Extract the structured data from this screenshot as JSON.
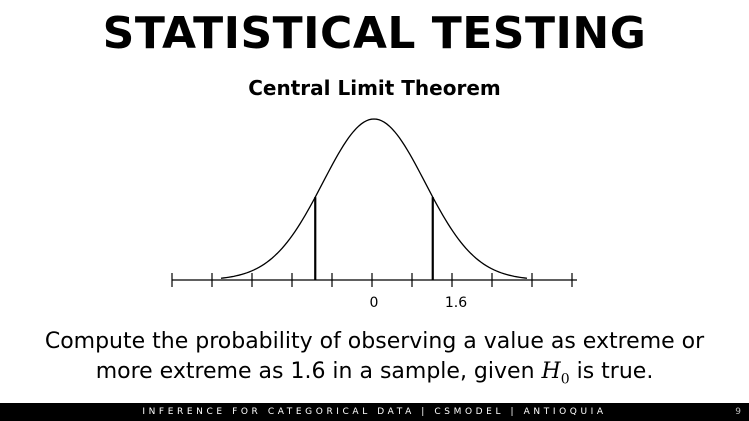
{
  "slide": {
    "title": "STATISTICAL TESTING",
    "subtitle": "Central Limit Theorem",
    "question": {
      "line1": "Compute the probability of observing a value as extreme or",
      "line2_before": "more extreme as 1.6 in a sample, given ",
      "math_symbol": "H",
      "math_subscript": "0",
      "line2_after": " is true."
    }
  },
  "figure": {
    "axis_labels": {
      "center": "0",
      "cutoff": "1.6"
    },
    "cutoff_value": 1.6
  },
  "footer": {
    "text": "INFERENCE FOR CATEGORICAL DATA | CSMODEL | ANTIOQUIA",
    "page_number": "9"
  }
}
